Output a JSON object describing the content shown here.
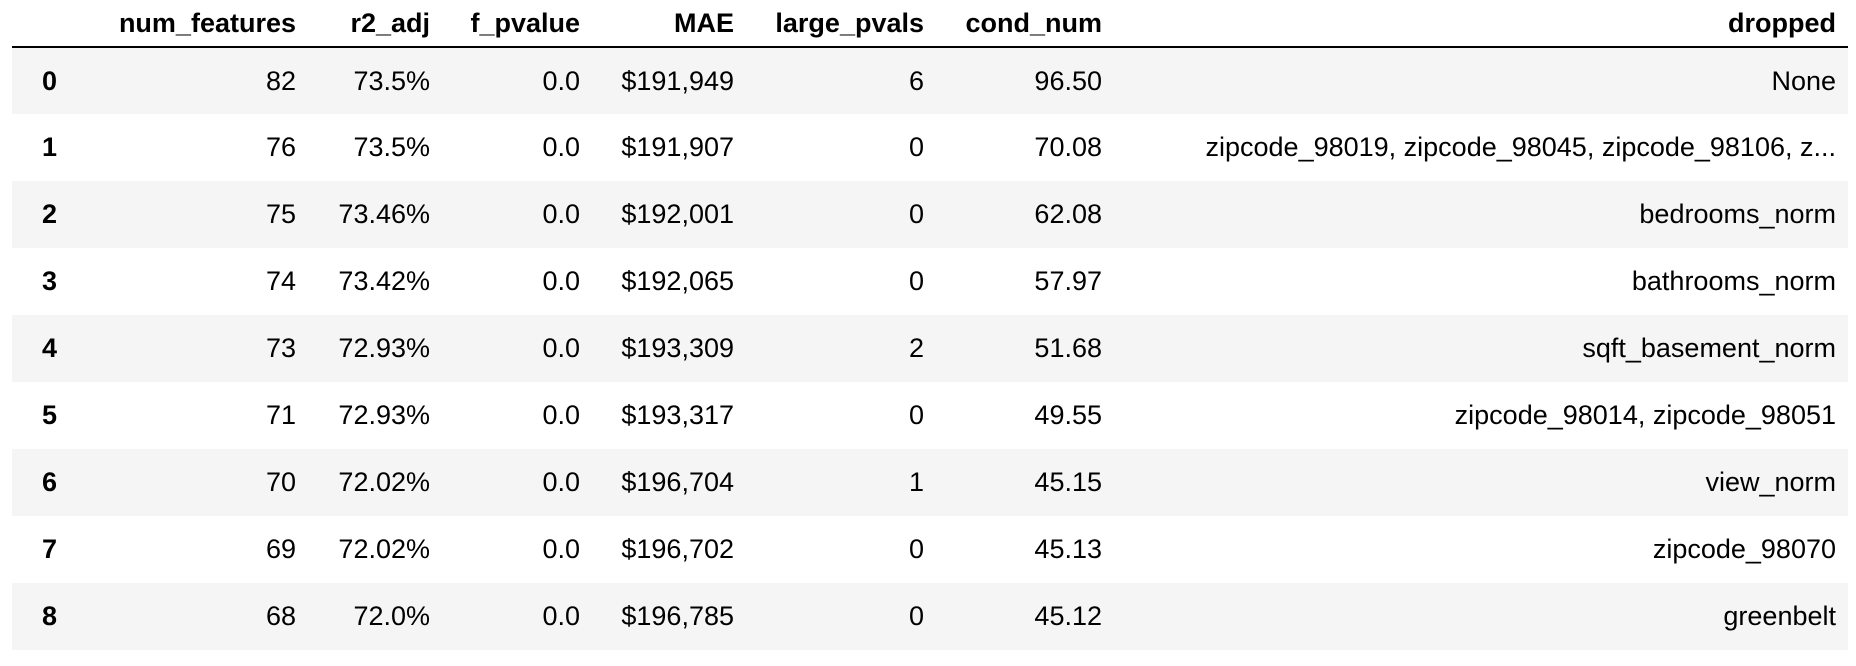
{
  "table": {
    "columns": [
      "",
      "num_features",
      "r2_adj",
      "f_pvalue",
      "MAE",
      "large_pvals",
      "cond_num",
      "dropped"
    ],
    "rows": [
      {
        "index": "0",
        "num_features": "82",
        "r2_adj": "73.5%",
        "f_pvalue": "0.0",
        "MAE": "$191,949",
        "large_pvals": "6",
        "cond_num": "96.50",
        "dropped": "None"
      },
      {
        "index": "1",
        "num_features": "76",
        "r2_adj": "73.5%",
        "f_pvalue": "0.0",
        "MAE": "$191,907",
        "large_pvals": "0",
        "cond_num": "70.08",
        "dropped": "zipcode_98019, zipcode_98045, zipcode_98106, z..."
      },
      {
        "index": "2",
        "num_features": "75",
        "r2_adj": "73.46%",
        "f_pvalue": "0.0",
        "MAE": "$192,001",
        "large_pvals": "0",
        "cond_num": "62.08",
        "dropped": "bedrooms_norm"
      },
      {
        "index": "3",
        "num_features": "74",
        "r2_adj": "73.42%",
        "f_pvalue": "0.0",
        "MAE": "$192,065",
        "large_pvals": "0",
        "cond_num": "57.97",
        "dropped": "bathrooms_norm"
      },
      {
        "index": "4",
        "num_features": "73",
        "r2_adj": "72.93%",
        "f_pvalue": "0.0",
        "MAE": "$193,309",
        "large_pvals": "2",
        "cond_num": "51.68",
        "dropped": "sqft_basement_norm"
      },
      {
        "index": "5",
        "num_features": "71",
        "r2_adj": "72.93%",
        "f_pvalue": "0.0",
        "MAE": "$193,317",
        "large_pvals": "0",
        "cond_num": "49.55",
        "dropped": "zipcode_98014, zipcode_98051"
      },
      {
        "index": "6",
        "num_features": "70",
        "r2_adj": "72.02%",
        "f_pvalue": "0.0",
        "MAE": "$196,704",
        "large_pvals": "1",
        "cond_num": "45.15",
        "dropped": "view_norm"
      },
      {
        "index": "7",
        "num_features": "69",
        "r2_adj": "72.02%",
        "f_pvalue": "0.0",
        "MAE": "$196,702",
        "large_pvals": "0",
        "cond_num": "45.13",
        "dropped": "zipcode_98070"
      },
      {
        "index": "8",
        "num_features": "68",
        "r2_adj": "72.0%",
        "f_pvalue": "0.0",
        "MAE": "$196,785",
        "large_pvals": "0",
        "cond_num": "45.12",
        "dropped": "greenbelt"
      }
    ]
  }
}
